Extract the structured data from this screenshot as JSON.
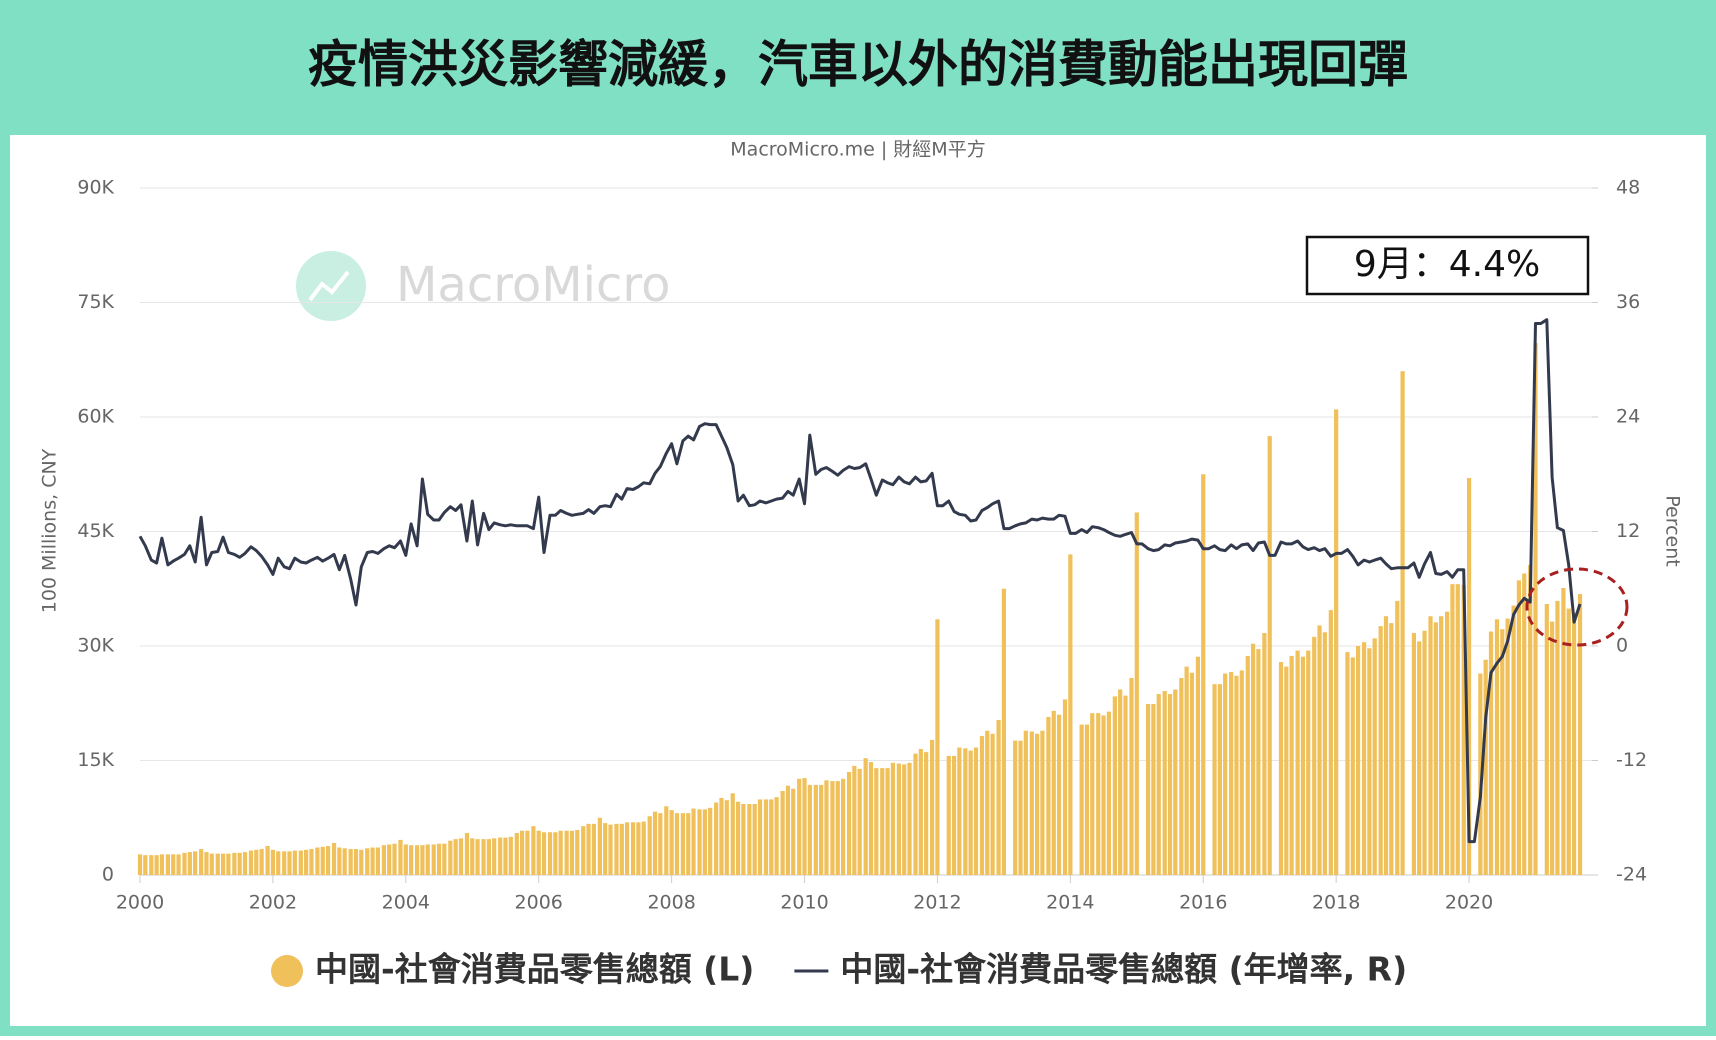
{
  "chart_data": {
    "type": "bar-line",
    "title": "疫情洪災影響減緩，汽車以外的消費動能出現回彈",
    "source": "MacroMicro.me | 財經M平方",
    "watermark": "MacroMicro",
    "annotation": "9月：4.4%",
    "y_label": "100 Millions, CNY",
    "y2_label": "Percent",
    "xlim": [
      2000,
      2021.85
    ],
    "xticks": [
      2000,
      2002,
      2004,
      2006,
      2008,
      2010,
      2012,
      2014,
      2016,
      2018,
      2020
    ],
    "ylim": [
      0,
      90000
    ],
    "yticks": [
      0,
      {
        "value": 15000,
        "label": "15K"
      },
      {
        "value": 30000,
        "label": "30K"
      },
      {
        "value": 45000,
        "label": "45K"
      },
      {
        "value": 60000,
        "label": "60K"
      },
      {
        "value": 75000,
        "label": "75K"
      },
      {
        "value": 90000,
        "label": "90K"
      }
    ],
    "y2lim": [
      -24,
      48
    ],
    "y2ticks": [
      -24,
      -12,
      0,
      12,
      24,
      36,
      48
    ],
    "grid": true,
    "legend": "bottom",
    "x": [
      2000,
      2000.08,
      2000.17,
      2000.25,
      2000.33,
      2000.42,
      2000.5,
      2000.58,
      2000.67,
      2000.75,
      2000.83,
      2000.92,
      2001,
      2001.08,
      2001.17,
      2001.25,
      2001.33,
      2001.42,
      2001.5,
      2001.58,
      2001.67,
      2001.75,
      2001.83,
      2001.92,
      2002,
      2002.08,
      2002.17,
      2002.25,
      2002.33,
      2002.42,
      2002.5,
      2002.58,
      2002.67,
      2002.75,
      2002.83,
      2002.92,
      2003,
      2003.08,
      2003.17,
      2003.25,
      2003.33,
      2003.42,
      2003.5,
      2003.58,
      2003.67,
      2003.75,
      2003.83,
      2003.92,
      2004,
      2004.08,
      2004.17,
      2004.25,
      2004.33,
      2004.42,
      2004.5,
      2004.58,
      2004.67,
      2004.75,
      2004.83,
      2004.92,
      2005,
      2005.08,
      2005.17,
      2005.25,
      2005.33,
      2005.42,
      2005.5,
      2005.58,
      2005.67,
      2005.75,
      2005.83,
      2005.92,
      2006,
      2006.08,
      2006.17,
      2006.25,
      2006.33,
      2006.42,
      2006.5,
      2006.58,
      2006.67,
      2006.75,
      2006.83,
      2006.92,
      2007,
      2007.08,
      2007.17,
      2007.25,
      2007.33,
      2007.42,
      2007.5,
      2007.58,
      2007.67,
      2007.75,
      2007.83,
      2007.92,
      2008,
      2008.08,
      2008.17,
      2008.25,
      2008.33,
      2008.42,
      2008.5,
      2008.58,
      2008.67,
      2008.75,
      2008.83,
      2008.92,
      2009,
      2009.08,
      2009.17,
      2009.25,
      2009.33,
      2009.42,
      2009.5,
      2009.58,
      2009.67,
      2009.75,
      2009.83,
      2009.92,
      2010,
      2010.08,
      2010.17,
      2010.25,
      2010.33,
      2010.42,
      2010.5,
      2010.58,
      2010.67,
      2010.75,
      2010.83,
      2010.92,
      2011,
      2011.08,
      2011.17,
      2011.25,
      2011.33,
      2011.42,
      2011.5,
      2011.58,
      2011.67,
      2011.75,
      2011.83,
      2011.92,
      2012,
      2012.08,
      2012.17,
      2012.25,
      2012.33,
      2012.42,
      2012.5,
      2012.58,
      2012.67,
      2012.75,
      2012.83,
      2012.92,
      2013,
      2013.08,
      2013.17,
      2013.25,
      2013.33,
      2013.42,
      2013.5,
      2013.58,
      2013.67,
      2013.75,
      2013.83,
      2013.92,
      2014,
      2014.08,
      2014.17,
      2014.25,
      2014.33,
      2014.42,
      2014.5,
      2014.58,
      2014.67,
      2014.75,
      2014.83,
      2014.92,
      2015,
      2015.08,
      2015.17,
      2015.25,
      2015.33,
      2015.42,
      2015.5,
      2015.58,
      2015.67,
      2015.75,
      2015.83,
      2015.92,
      2016,
      2016.08,
      2016.17,
      2016.25,
      2016.33,
      2016.42,
      2016.5,
      2016.58,
      2016.67,
      2016.75,
      2016.83,
      2016.92,
      2017,
      2017.08,
      2017.17,
      2017.25,
      2017.33,
      2017.42,
      2017.5,
      2017.58,
      2017.67,
      2017.75,
      2017.83,
      2017.92,
      2018,
      2018.08,
      2018.17,
      2018.25,
      2018.33,
      2018.42,
      2018.5,
      2018.58,
      2018.67,
      2018.75,
      2018.83,
      2018.92,
      2019,
      2019.08,
      2019.17,
      2019.25,
      2019.33,
      2019.42,
      2019.5,
      2019.58,
      2019.67,
      2019.75,
      2019.83,
      2019.92,
      2020,
      2020.08,
      2020.17,
      2020.25,
      2020.33,
      2020.42,
      2020.5,
      2020.58,
      2020.67,
      2020.75,
      2020.83,
      2020.92,
      2021,
      2021.08,
      2021.17,
      2021.25,
      2021.33,
      2021.42,
      2021.5,
      2021.58,
      2021.67
    ],
    "series": [
      {
        "name": "中國-社會消費品零售總額 (L)",
        "type": "bar",
        "color": "#f0c05a",
        "axis": "y",
        "values": [
          2700,
          2600,
          2600,
          2600,
          2700,
          2700,
          2700,
          2700,
          2900,
          3000,
          3100,
          3400,
          3000,
          2800,
          2800,
          2800,
          2800,
          2900,
          2900,
          3000,
          3200,
          3300,
          3400,
          3800,
          3300,
          3100,
          3100,
          3100,
          3200,
          3200,
          3300,
          3400,
          3600,
          3700,
          3800,
          4200,
          3600,
          3500,
          3400,
          3400,
          3300,
          3500,
          3600,
          3600,
          3900,
          4000,
          4100,
          4600,
          4000,
          3900,
          3900,
          3900,
          4000,
          4000,
          4100,
          4100,
          4500,
          4700,
          4800,
          5500,
          4800,
          4700,
          4700,
          4700,
          4800,
          4900,
          4900,
          5000,
          5500,
          5800,
          5800,
          6400,
          5800,
          5600,
          5600,
          5600,
          5800,
          5800,
          5800,
          5900,
          6400,
          6700,
          6700,
          7500,
          6800,
          6600,
          6700,
          6700,
          6900,
          6900,
          6900,
          7000,
          7700,
          8300,
          8100,
          9000,
          8500,
          8100,
          8100,
          8100,
          8700,
          8600,
          8600,
          8800,
          9500,
          10100,
          9800,
          10700,
          9600,
          9300,
          9300,
          9300,
          9900,
          9900,
          9900,
          10200,
          11000,
          11700,
          11300,
          12600,
          12700,
          11800,
          11800,
          11800,
          12400,
          12300,
          12300,
          12600,
          13500,
          14300,
          13900,
          15300,
          14800,
          14000,
          14000,
          14000,
          14700,
          14600,
          14500,
          14700,
          15900,
          16500,
          16100,
          17700,
          33500,
          null,
          15600,
          15600,
          16700,
          16600,
          16300,
          16700,
          18200,
          18900,
          18500,
          20300,
          37500,
          null,
          17600,
          17600,
          18900,
          18800,
          18500,
          18900,
          20700,
          21500,
          21000,
          23000,
          42000,
          null,
          19700,
          19700,
          21200,
          21200,
          20900,
          21400,
          23400,
          24300,
          23500,
          25800,
          47500,
          null,
          22400,
          22400,
          23700,
          24100,
          23700,
          24300,
          25800,
          27300,
          26500,
          28600,
          52500,
          null,
          25000,
          25000,
          26400,
          26600,
          26100,
          26800,
          28700,
          30300,
          29600,
          31700,
          57500,
          null,
          27900,
          27300,
          28700,
          29400,
          28600,
          29400,
          31200,
          32700,
          31800,
          34700,
          61000,
          null,
          29200,
          28500,
          30000,
          30500,
          29700,
          31000,
          32600,
          33900,
          33000,
          35900,
          66000,
          null,
          31700,
          30600,
          32000,
          33900,
          33100,
          33900,
          34500,
          38100,
          38100,
          38000,
          52000,
          null,
          26400,
          28200,
          31900,
          33500,
          32200,
          33600,
          35300,
          38600,
          39500,
          40600,
          69700,
          null,
          35500,
          33200,
          35900,
          37600,
          34900,
          34400,
          36800
        ]
      },
      {
        "name": "中國-社會消費品零售總額 (年增率, R)",
        "type": "line",
        "color": "#333a4d",
        "axis": "y2",
        "values": [
          11.5,
          10.5,
          9,
          8.7,
          11.3,
          8.5,
          8.9,
          9.2,
          9.6,
          10.5,
          8.8,
          13.5,
          8.5,
          9.8,
          9.9,
          11.4,
          9.8,
          9.6,
          9.3,
          9.7,
          10.4,
          10,
          9.4,
          8.5,
          7.5,
          9.2,
          8.3,
          8.1,
          9.2,
          8.8,
          8.7,
          9,
          9.3,
          8.9,
          9.2,
          9.6,
          8,
          9.5,
          7,
          4.3,
          8.3,
          9.8,
          9.9,
          9.7,
          10.2,
          10.5,
          10.3,
          11,
          9.5,
          12.8,
          10.5,
          17.5,
          13.8,
          13.2,
          13.2,
          14,
          14.6,
          14.2,
          14.8,
          11,
          15.2,
          10.6,
          13.9,
          12.2,
          12.9,
          12.7,
          12.6,
          12.7,
          12.6,
          12.6,
          12.6,
          12.3,
          15.6,
          9.8,
          13.7,
          13.7,
          14.2,
          13.9,
          13.7,
          13.8,
          13.9,
          14.3,
          13.9,
          14.6,
          14.7,
          14.6,
          15.9,
          15.4,
          16.5,
          16.4,
          16.7,
          17.1,
          17,
          18.1,
          18.8,
          20.2,
          21.2,
          19.1,
          21.5,
          22,
          21.6,
          23,
          23.3,
          23.2,
          23.2,
          22,
          20.8,
          19,
          15.2,
          15.8,
          14.7,
          14.8,
          15.2,
          15,
          15.2,
          15.4,
          15.5,
          16.2,
          15.8,
          17.5,
          14.9,
          22.1,
          18,
          18.5,
          18.7,
          18.3,
          17.9,
          18.4,
          18.8,
          18.6,
          18.7,
          19.1,
          17.5,
          15.8,
          17.4,
          17.1,
          16.9,
          17.7,
          17.2,
          17,
          17.7,
          17.2,
          17.3,
          18.1,
          14.7,
          14.7,
          15.2,
          14.1,
          13.8,
          13.7,
          13.1,
          13.2,
          14.2,
          14.5,
          14.9,
          15.2,
          12.3,
          12.3,
          12.6,
          12.8,
          12.9,
          13.3,
          13.2,
          13.4,
          13.3,
          13.3,
          13.7,
          13.6,
          11.8,
          11.8,
          12.2,
          11.9,
          12.5,
          12.4,
          12.2,
          11.9,
          11.6,
          11.5,
          11.7,
          11.9,
          10.7,
          10.7,
          10.2,
          10,
          10.1,
          10.6,
          10.5,
          10.8,
          10.9,
          11,
          11.2,
          11.1,
          10.2,
          10.2,
          10.5,
          10.1,
          10,
          10.6,
          10.2,
          10.6,
          10.7,
          10,
          10.8,
          10.9,
          9.5,
          9.5,
          10.9,
          10.7,
          10.7,
          11,
          10.4,
          10.1,
          10.3,
          10,
          10.2,
          9.4,
          9.7,
          9.7,
          10.1,
          9.4,
          8.5,
          9,
          8.8,
          9,
          9.2,
          8.6,
          8.1,
          8.2,
          8.2,
          8.2,
          8.7,
          7.2,
          8.6,
          9.8,
          7.6,
          7.5,
          7.8,
          7.2,
          8,
          8,
          -20.5,
          -20.5,
          -15.8,
          -7.5,
          -2.8,
          -1.8,
          -1.1,
          0.5,
          3.3,
          4.3,
          5,
          4.6,
          33.8,
          33.8,
          34.2,
          17.7,
          12.4,
          12.1,
          8.5,
          2.5,
          4.4
        ]
      }
    ]
  }
}
